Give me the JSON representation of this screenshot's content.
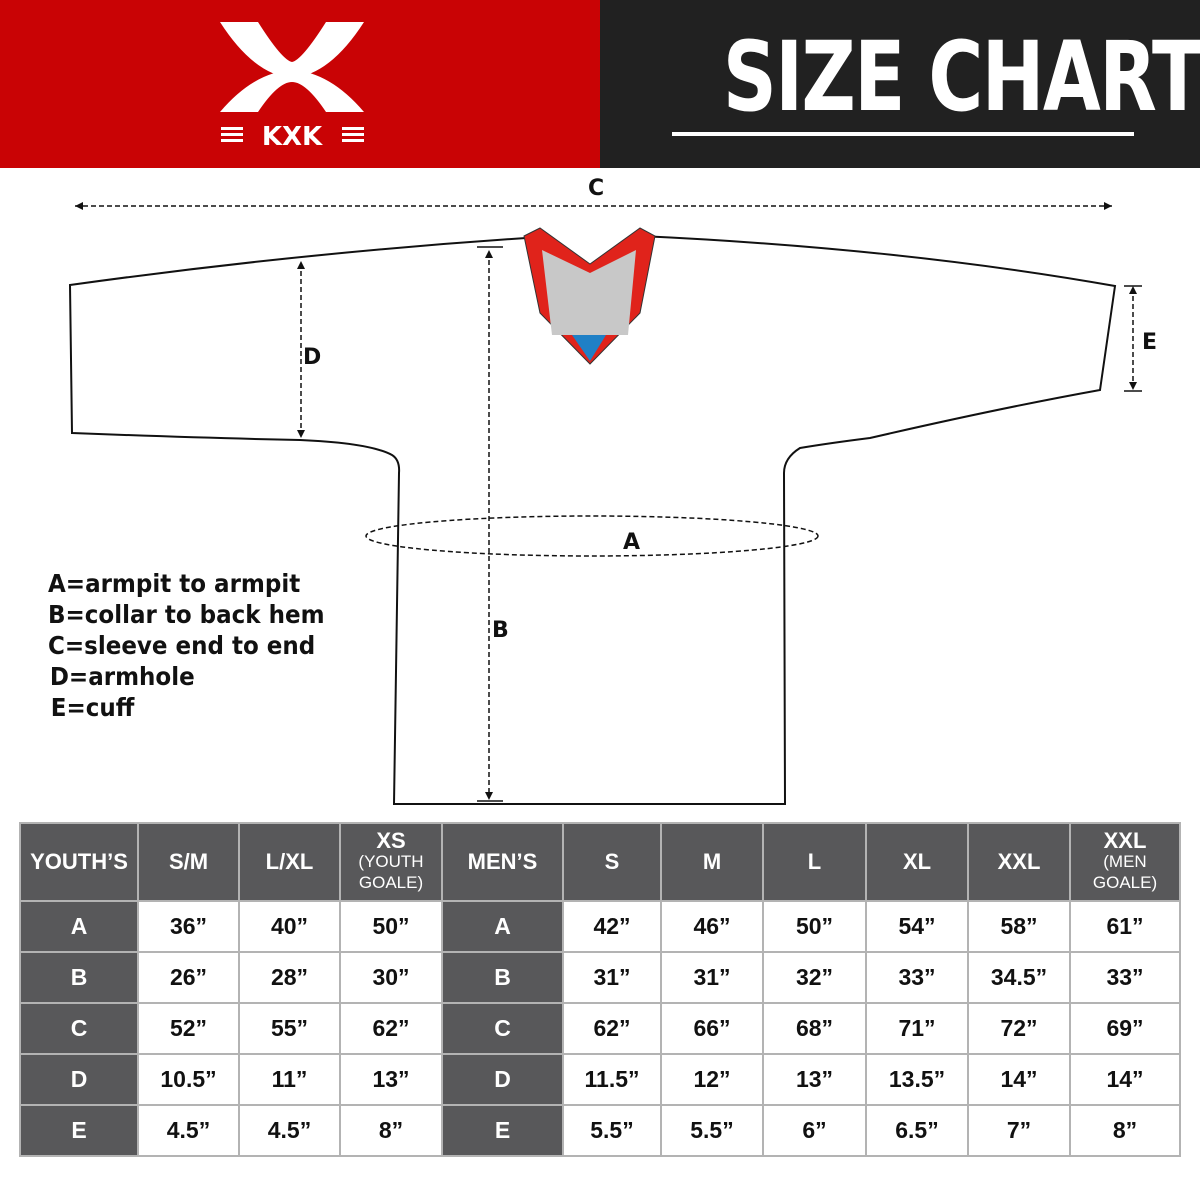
{
  "brand": {
    "logo_text": "KXK",
    "colors": {
      "red": "#c90305",
      "dark": "#212121",
      "table_header": "#58585a"
    }
  },
  "header": {
    "title": "SIZE CHART"
  },
  "diagram": {
    "labels": {
      "a": "A",
      "b": "B",
      "c": "C",
      "d": "D",
      "e": "E"
    }
  },
  "legend": [
    "A=armpit to armpit",
    "B=collar to back hem",
    "C=sleeve end to end",
    "D=armhole",
    "E=cuff"
  ],
  "table": {
    "youth_header": {
      "label": "YOUTH’S",
      "cols": [
        {
          "main": "S/M"
        },
        {
          "main": "L/XL"
        },
        {
          "main": "XS",
          "sub1": "(YOUTH",
          "sub2": "GOALE)"
        }
      ]
    },
    "men_header": {
      "label": "MEN’S",
      "cols": [
        {
          "main": "S"
        },
        {
          "main": "M"
        },
        {
          "main": "L"
        },
        {
          "main": "XL"
        },
        {
          "main": "XXL"
        },
        {
          "main": "XXL",
          "sub1": "(MEN",
          "sub2": "GOALE)"
        }
      ]
    },
    "rows": [
      {
        "key": "A",
        "youth": [
          "36”",
          "40”",
          "50”"
        ],
        "men": [
          "42”",
          "46”",
          "50”",
          "54”",
          "58”",
          "61”"
        ]
      },
      {
        "key": "B",
        "youth": [
          "26”",
          "28”",
          "30”"
        ],
        "men": [
          "31”",
          "31”",
          "32”",
          "33”",
          "34.5”",
          "33”"
        ]
      },
      {
        "key": "C",
        "youth": [
          "52”",
          "55”",
          "62”"
        ],
        "men": [
          "62”",
          "66”",
          "68”",
          "71”",
          "72”",
          "69”"
        ]
      },
      {
        "key": "D",
        "youth": [
          "10.5”",
          "11”",
          "13”"
        ],
        "men": [
          "11.5”",
          "12”",
          "13”",
          "13.5”",
          "14”",
          "14”"
        ]
      },
      {
        "key": "E",
        "youth": [
          "4.5”",
          "4.5”",
          "8”"
        ],
        "men": [
          "5.5”",
          "5.5”",
          "6”",
          "6.5”",
          "7”",
          "8”"
        ]
      }
    ]
  }
}
